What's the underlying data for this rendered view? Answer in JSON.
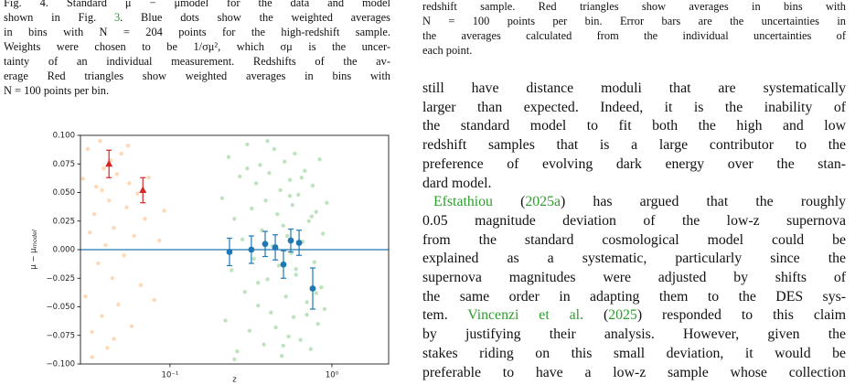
{
  "left_caption": [
    [
      [
        "Fig. 4.  Standard μ − μmodel for the data and model"
      ],
      [
        "shown in Fig. ",
        {
          "link": "3"
        },
        ". Blue dots show the weighted averages"
      ],
      [
        "in bins with N = 204 points for the high-redshift sample."
      ],
      [
        "Weights were chosen to be 1/σμ², which σμ is the uncer-"
      ],
      [
        "tainty of an individual measurement. Redshifts of the av-"
      ],
      [
        "erage Red triangles show weighted averages in bins with"
      ],
      [
        "N = 100 points per bin."
      ]
    ]
  ],
  "right_caption": [
    [
      [
        "redshift sample. Red triangles show averages in bins with"
      ],
      [
        "N = 100 points per bin. Error bars are the uncertainties in"
      ],
      [
        "the averages calculated from the individual uncertainties of"
      ],
      [
        "each point."
      ]
    ]
  ],
  "body": [
    [
      [
        "still have distance moduli that are systematically"
      ],
      [
        "larger than expected. Indeed, it is the inability of"
      ],
      [
        "the standard model to fit both the high and low"
      ],
      [
        "redshift samples that is a large contributor to the"
      ],
      [
        "preference of evolving dark energy over the stan-"
      ],
      [
        "dard model."
      ]
    ],
    [
      [
        {
          "link": "Efstathiou"
        },
        " (",
        {
          "link": "2025a"
        },
        ") has argued that the roughly"
      ],
      [
        "0.05 magnitude deviation of the low-z supernova"
      ],
      [
        "from the standard cosmological model could be"
      ],
      [
        "explained as a systematic, particularly since the"
      ],
      [
        "supernova magnitudes were adjusted by shifts of"
      ],
      [
        "the same order in adapting them to the DES sys-"
      ],
      [
        "tem. ",
        {
          "link": "Vincenzi et al."
        },
        " (",
        {
          "link": "2025"
        },
        ") responded to this claim"
      ],
      [
        "by justifying their analysis.  However, given the"
      ],
      [
        "stakes riding on this small deviation, it would be"
      ],
      [
        "preferable to have a low-z sample whose collection"
      ]
    ]
  ],
  "chart_data": {
    "type": "scatter",
    "xlabel": "z",
    "ylabel": {
      "main": "μ − μ",
      "sub": "model"
    },
    "xscale": "log",
    "xlim": [
      0.028,
      2.24
    ],
    "ylim": [
      -0.1,
      0.1
    ],
    "xticks": [
      {
        "value": 0.1,
        "label": "10⁻¹"
      },
      {
        "value": 1,
        "label": "10⁰"
      }
    ],
    "yticks": [
      {
        "value": 0.1,
        "label": "0.100"
      },
      {
        "value": 0.075,
        "label": "0.075"
      },
      {
        "value": 0.05,
        "label": "0.050"
      },
      {
        "value": 0.025,
        "label": "0.025"
      },
      {
        "value": 0,
        "label": "0.000"
      },
      {
        "value": -0.025,
        "label": "−0.025"
      },
      {
        "value": -0.05,
        "label": "−0.050"
      },
      {
        "value": -0.075,
        "label": "−0.075"
      },
      {
        "value": -0.1,
        "label": "−0.100"
      }
    ],
    "hline": 0,
    "hline_color": "#1f77b4",
    "series": [
      {
        "marker": "dot",
        "color": "#ff7f0e",
        "x": [
          0.029,
          0.03,
          0.031,
          0.032,
          0.033,
          0.034,
          0.035,
          0.036,
          0.037,
          0.038,
          0.039,
          0.04,
          0.041,
          0.042,
          0.043,
          0.044,
          0.045,
          0.047,
          0.048,
          0.05,
          0.052,
          0.054,
          0.056,
          0.058,
          0.06,
          0.063,
          0.066,
          0.07,
          0.074,
          0.08,
          0.086,
          0.092,
          0.033,
          0.038,
          0.045,
          0.055
        ],
        "values": [
          0.062,
          -0.041,
          0.088,
          0.015,
          -0.072,
          0.031,
          0.055,
          -0.012,
          0.095,
          -0.058,
          0.071,
          0.004,
          -0.086,
          0.043,
          0.078,
          -0.025,
          0.019,
          0.066,
          -0.048,
          0.084,
          -0.005,
          0.037,
          0.058,
          -0.067,
          0.012,
          0.049,
          -0.031,
          0.027,
          0.063,
          -0.044,
          0.008,
          0.034,
          -0.094,
          0.052,
          -0.078,
          0.091
        ]
      },
      {
        "marker": "dot",
        "color": "#2ca02c",
        "x": [
          0.21,
          0.22,
          0.23,
          0.24,
          0.25,
          0.26,
          0.27,
          0.28,
          0.29,
          0.3,
          0.31,
          0.32,
          0.33,
          0.34,
          0.35,
          0.36,
          0.37,
          0.38,
          0.39,
          0.4,
          0.41,
          0.42,
          0.43,
          0.44,
          0.45,
          0.46,
          0.47,
          0.48,
          0.49,
          0.5,
          0.51,
          0.52,
          0.53,
          0.54,
          0.55,
          0.56,
          0.57,
          0.58,
          0.59,
          0.6,
          0.62,
          0.64,
          0.66,
          0.68,
          0.7,
          0.72,
          0.74,
          0.76,
          0.78,
          0.8,
          0.82,
          0.84,
          0.86,
          0.88,
          0.9,
          0.93,
          0.25,
          0.3,
          0.35,
          0.4,
          0.45,
          0.5,
          0.55,
          0.6,
          0.65,
          0.7,
          0.75,
          0.8
        ],
        "values": [
          0.045,
          -0.062,
          0.081,
          -0.018,
          0.027,
          -0.089,
          0.064,
          0.009,
          -0.037,
          0.092,
          -0.071,
          0.036,
          -0.008,
          0.058,
          -0.049,
          0.074,
          0.017,
          -0.083,
          0.043,
          -0.026,
          0.067,
          -0.055,
          0.003,
          0.088,
          -0.068,
          0.031,
          -0.014,
          0.052,
          -0.093,
          0.021,
          0.077,
          -0.041,
          0.012,
          -0.076,
          0.061,
          -0.003,
          0.039,
          -0.059,
          0.084,
          -0.022,
          0.048,
          -0.079,
          0.007,
          0.069,
          -0.046,
          0.025,
          -0.087,
          0.056,
          -0.011,
          0.033,
          -0.065,
          0.079,
          -0.033,
          0.014,
          -0.052,
          0.041,
          -0.096,
          0.071,
          -0.029,
          0.095,
          0.002,
          -0.084,
          0.047,
          -0.017,
          0.063,
          -0.057,
          0.029,
          -0.038
        ]
      },
      {
        "marker": "triangle",
        "color": "#d62728",
        "x": [
          0.042,
          0.068
        ],
        "values": [
          0.075,
          0.052
        ],
        "errors": [
          0.012,
          0.011
        ]
      },
      {
        "marker": "circle",
        "color": "#1f77b4",
        "x": [
          0.233,
          0.318,
          0.387,
          0.447,
          0.502,
          0.557,
          0.627,
          0.761
        ],
        "values": [
          -0.002,
          0.0,
          0.005,
          0.002,
          -0.013,
          0.008,
          0.006,
          -0.034
        ],
        "errors": [
          0.012,
          0.012,
          0.011,
          0.011,
          0.012,
          0.01,
          0.011,
          0.018
        ]
      }
    ]
  }
}
